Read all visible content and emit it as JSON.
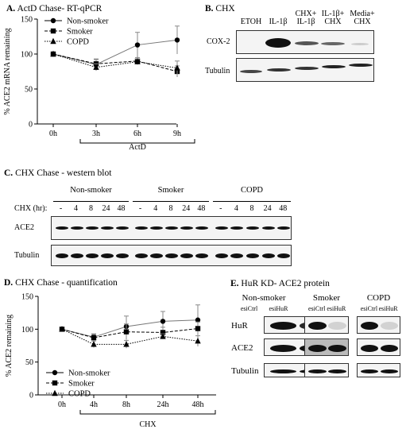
{
  "panelA": {
    "title_letter": "A.",
    "title_text": "ActD Chase- RT-qPCR",
    "chart_data": {
      "type": "line",
      "ylabel": "% ACE2 mRNA remaining",
      "xlabel": "ActD",
      "categories": [
        "0h",
        "3h",
        "6h",
        "9h"
      ],
      "ylim": [
        0,
        150
      ],
      "yticks": [
        0,
        50,
        100,
        150
      ],
      "series": [
        {
          "name": "Non-smoker",
          "marker": "circle",
          "line": "solid",
          "values": [
            100,
            85,
            113,
            120
          ],
          "err": [
            0,
            8,
            18,
            20
          ]
        },
        {
          "name": "Smoker",
          "marker": "square",
          "line": "dashed",
          "values": [
            100,
            86,
            90,
            75
          ],
          "err": [
            0,
            6,
            5,
            8
          ]
        },
        {
          "name": "COPD",
          "marker": "triangle",
          "line": "dotted",
          "values": [
            100,
            81,
            89,
            80
          ],
          "err": [
            0,
            5,
            4,
            10
          ]
        }
      ]
    }
  },
  "panelB": {
    "title_letter": "B.",
    "title_text": "CHX",
    "lanes": [
      "ETOH",
      "IL-1β",
      "CHX+\nIL-1β",
      "IL-1β+\nCHX",
      "Media+\nCHX"
    ],
    "rows": [
      "COX-2",
      "Tubulin"
    ]
  },
  "panelC": {
    "title_letter": "C.",
    "title_text": "CHX Chase - western blot",
    "groups": [
      "Non-smoker",
      "Smoker",
      "COPD"
    ],
    "time_label": "CHX (hr):",
    "times": [
      "-",
      "4",
      "8",
      "24",
      "48"
    ],
    "rows": [
      "ACE2",
      "Tubulin"
    ]
  },
  "panelD": {
    "title_letter": "D.",
    "title_text": "CHX Chase - quantification",
    "chart_data": {
      "type": "line",
      "ylabel": "% ACE2 remaining",
      "xlabel": "CHX",
      "categories": [
        "0h",
        "4h",
        "8h",
        "24h",
        "48h"
      ],
      "ylim": [
        0,
        150
      ],
      "yticks": [
        0,
        50,
        100,
        150
      ],
      "series": [
        {
          "name": "Non-smoker",
          "marker": "circle",
          "line": "solid",
          "values": [
            100,
            88,
            104,
            112,
            114
          ],
          "err": [
            0,
            5,
            16,
            15,
            23
          ]
        },
        {
          "name": "Smoker",
          "marker": "square",
          "line": "dashed",
          "values": [
            100,
            87,
            96,
            95,
            101
          ],
          "err": [
            0,
            5,
            12,
            8,
            10
          ]
        },
        {
          "name": "COPD",
          "marker": "triangle",
          "line": "dotted",
          "values": [
            100,
            77,
            77,
            89,
            82
          ],
          "err": [
            0,
            5,
            6,
            4,
            8
          ]
        }
      ]
    }
  },
  "panelE": {
    "title_letter": "E.",
    "title_text": "HuR KD- ACE2 protein",
    "groups": [
      "Non-smoker",
      "Smoker",
      "COPD"
    ],
    "lanes": [
      "esiCtrl",
      "esiHuR"
    ],
    "rows": [
      "HuR",
      "ACE2",
      "Tubulin"
    ]
  }
}
